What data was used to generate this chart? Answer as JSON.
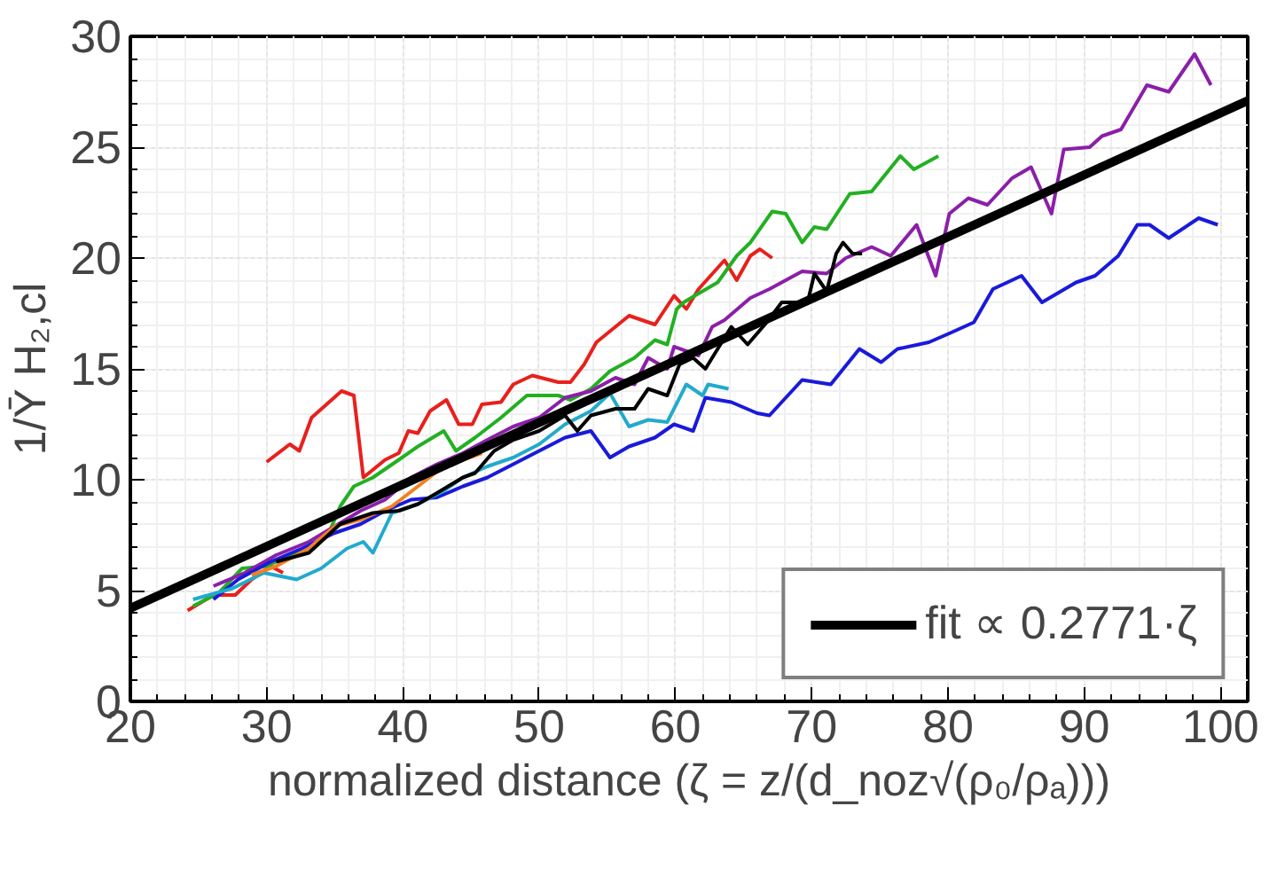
{
  "chart_data": {
    "type": "line",
    "xlabel": "normalized distance (ζ = z/(d_noz√(ρ₀/ρₐ)))",
    "ylabel": "1/Ȳ H₂,cl",
    "xlim": [
      20,
      102
    ],
    "ylim": [
      0,
      30
    ],
    "xticks": [
      20,
      30,
      40,
      50,
      60,
      70,
      80,
      90,
      100
    ],
    "yticks": [
      0,
      5,
      10,
      15,
      20,
      25,
      30
    ],
    "grid": true,
    "legend": "bottom right",
    "series": [
      {
        "color": "#e8201c",
        "x": [
          30.0,
          31.7,
          32.4,
          33.3,
          35.5,
          36.4,
          37.1,
          38.7,
          39.7,
          40.4,
          41.1,
          42.0,
          43.2,
          44.1,
          45.1,
          45.8,
          47.2,
          48.1,
          49.5,
          51.4,
          52.3,
          53.3,
          54.2,
          56.6,
          58.5,
          59.9,
          60.8,
          61.7,
          63.6,
          64.5,
          65.5,
          66.2,
          67.1
        ],
        "values": [
          10.8,
          11.6,
          11.3,
          12.8,
          14.0,
          13.8,
          10.1,
          10.9,
          11.2,
          12.2,
          12.1,
          13.1,
          13.6,
          12.5,
          12.5,
          13.4,
          13.5,
          14.3,
          14.7,
          14.4,
          14.4,
          15.2,
          16.2,
          17.4,
          17.0,
          18.3,
          17.7,
          18.6,
          19.9,
          19.0,
          20.1,
          20.4,
          20.0
        ]
      },
      {
        "color": "#e8201c",
        "x": [
          24.2,
          26.1,
          27.7,
          28.9,
          30.3,
          31.2
        ],
        "values": [
          4.1,
          4.8,
          4.8,
          5.5,
          6.1,
          5.8
        ]
      },
      {
        "color": "#22b022",
        "x": [
          24.6,
          26.5,
          28.2,
          30.0,
          31.7,
          33.1,
          34.5,
          35.4,
          36.4,
          37.8,
          39.7,
          41.1,
          43.0,
          43.9,
          45.3,
          47.2,
          49.1,
          51.4,
          52.3,
          53.8,
          55.2,
          57.0,
          58.5,
          59.4,
          60.1,
          60.6,
          61.7,
          63.1,
          64.5,
          65.5,
          67.1,
          68.1,
          69.3,
          70.2,
          71.1,
          72.8,
          74.4,
          76.5,
          77.5,
          79.3
        ],
        "values": [
          4.3,
          4.9,
          6.0,
          6.1,
          6.6,
          6.9,
          7.5,
          8.8,
          9.7,
          10.1,
          10.9,
          11.5,
          12.2,
          11.3,
          11.9,
          12.8,
          13.8,
          13.8,
          13.6,
          14.1,
          14.9,
          15.5,
          16.3,
          16.1,
          17.7,
          18.0,
          18.4,
          18.9,
          20.1,
          20.7,
          22.1,
          22.0,
          20.7,
          21.4,
          21.3,
          22.9,
          23.0,
          24.6,
          24.0,
          24.6
        ]
      },
      {
        "color": "#8b1fa8",
        "x": [
          26.1,
          28.4,
          30.7,
          33.1,
          35.0,
          36.9,
          38.7,
          40.6,
          42.5,
          44.4,
          46.2,
          48.1,
          50.0,
          51.9,
          53.8,
          55.6,
          57.0,
          58.0,
          59.4,
          59.9,
          61.7,
          62.7,
          63.6,
          65.5,
          66.9,
          69.3,
          71.1,
          72.5,
          74.4,
          75.8,
          77.7,
          79.1,
          80.1,
          81.5,
          82.9,
          84.7,
          86.1,
          87.6,
          88.5,
          90.4,
          91.3,
          92.7,
          94.6,
          96.2,
          98.1,
          99.3
        ],
        "values": [
          5.2,
          5.8,
          6.6,
          7.2,
          7.9,
          8.6,
          9.1,
          10.1,
          10.7,
          11.2,
          11.8,
          12.4,
          12.8,
          13.7,
          14.0,
          14.6,
          14.3,
          15.5,
          15.0,
          16.0,
          15.6,
          16.9,
          17.2,
          18.2,
          18.6,
          19.4,
          19.3,
          20.0,
          20.5,
          20.1,
          21.5,
          19.2,
          22.0,
          22.7,
          22.4,
          23.6,
          24.1,
          22.0,
          24.9,
          25.0,
          25.5,
          25.8,
          27.8,
          27.5,
          29.2,
          27.8
        ]
      },
      {
        "color": "#1a1adb",
        "x": [
          26.1,
          27.9,
          30.3,
          32.6,
          35.0,
          36.9,
          38.7,
          40.6,
          42.5,
          44.4,
          46.2,
          48.1,
          50.0,
          51.9,
          53.8,
          55.2,
          56.6,
          58.5,
          59.9,
          61.3,
          62.2,
          64.1,
          66.0,
          66.9,
          69.3,
          71.4,
          73.5,
          75.1,
          76.3,
          78.6,
          80.1,
          81.9,
          83.3,
          85.4,
          86.9,
          89.4,
          90.8,
          92.5,
          93.9,
          94.8,
          96.2,
          98.4,
          99.8
        ],
        "values": [
          4.6,
          5.5,
          6.3,
          6.9,
          7.6,
          8.0,
          8.6,
          9.1,
          9.2,
          9.7,
          10.1,
          10.7,
          11.3,
          11.9,
          12.2,
          11.0,
          11.5,
          11.9,
          12.5,
          12.2,
          13.7,
          13.5,
          13.0,
          12.9,
          14.5,
          14.3,
          15.9,
          15.3,
          15.9,
          16.2,
          16.6,
          17.1,
          18.6,
          19.2,
          18.0,
          18.9,
          19.2,
          20.1,
          21.5,
          21.5,
          20.9,
          21.8,
          21.5
        ]
      },
      {
        "color": "#22aacc",
        "x": [
          24.6,
          27.5,
          29.8,
          32.2,
          34.0,
          35.9,
          37.1,
          37.8,
          39.2,
          41.1,
          43.0,
          44.4,
          46.2,
          48.1,
          50.0,
          51.9,
          53.8,
          55.2,
          56.6,
          58.0,
          59.4,
          60.8,
          62.0,
          62.4,
          63.9
        ],
        "values": [
          4.6,
          5.1,
          5.8,
          5.5,
          6.0,
          6.9,
          7.2,
          6.7,
          8.5,
          8.9,
          9.5,
          10.1,
          10.6,
          11.0,
          11.6,
          12.5,
          13.1,
          13.9,
          12.4,
          12.7,
          12.6,
          14.3,
          13.8,
          14.3,
          14.1
        ]
      },
      {
        "color": "#f08020",
        "x": [
          28.9,
          30.7,
          33.1,
          35.0,
          36.9,
          39.2,
          41.1,
          43.0,
          44.4,
          45.8
        ],
        "values": [
          5.7,
          6.1,
          6.9,
          7.9,
          8.2,
          8.8,
          9.7,
          10.6,
          10.9,
          11.2
        ]
      },
      {
        "color": "#000000",
        "x": [
          30.7,
          33.1,
          35.4,
          37.8,
          39.7,
          41.1,
          42.5,
          44.4,
          45.3,
          46.7,
          48.1,
          50.0,
          51.9,
          52.8,
          53.8,
          55.6,
          57.0,
          58.0,
          59.4,
          60.3,
          61.3,
          62.2,
          64.1,
          65.3,
          66.7,
          67.8,
          69.7,
          70.2,
          71.1,
          71.8,
          72.3,
          73.0,
          73.7
        ],
        "values": [
          6.3,
          6.7,
          8.0,
          8.5,
          8.6,
          8.9,
          9.4,
          10.1,
          10.3,
          11.3,
          11.8,
          12.2,
          12.9,
          12.2,
          12.9,
          13.2,
          13.2,
          14.1,
          13.8,
          15.2,
          15.5,
          15.0,
          16.9,
          16.1,
          17.1,
          18.0,
          18.0,
          19.3,
          18.5,
          20.2,
          20.7,
          20.2,
          20.2
        ]
      },
      {
        "name": "fit ∝ 0.2771·ζ",
        "color": "#000000",
        "x": [
          20,
          102
        ],
        "values": [
          4.2,
          27.1
        ]
      }
    ]
  }
}
